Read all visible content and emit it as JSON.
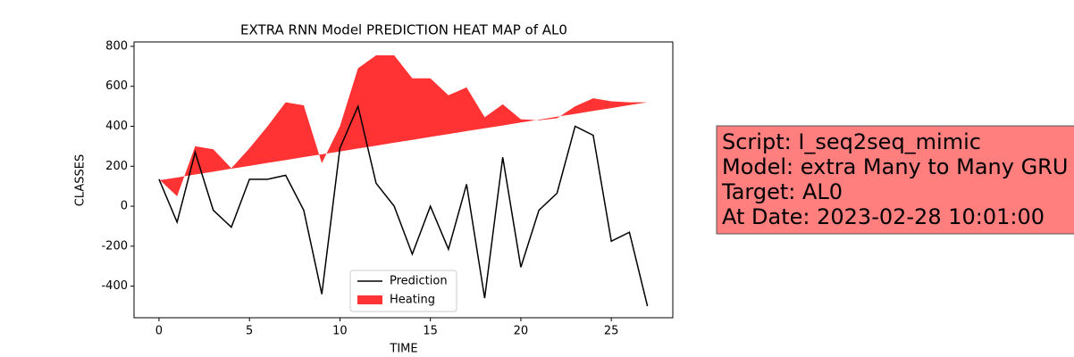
{
  "chart_data": {
    "type": "line",
    "title": "EXTRA RNN Model PREDICTION HEAT MAP of AL0",
    "xlabel": "TIME",
    "ylabel": "CLASSES",
    "x": [
      0,
      1,
      2,
      3,
      4,
      5,
      6,
      7,
      8,
      9,
      10,
      11,
      12,
      13,
      14,
      15,
      16,
      17,
      18,
      19,
      20,
      21,
      22,
      23,
      24,
      25,
      26,
      27
    ],
    "series": [
      {
        "name": "Prediction",
        "color": "#000000",
        "kind": "line",
        "values": [
          135,
          -80,
          270,
          -20,
          -105,
          135,
          135,
          155,
          -20,
          -440,
          290,
          500,
          115,
          0,
          -240,
          0,
          -215,
          110,
          -460,
          245,
          -305,
          -20,
          65,
          400,
          355,
          -175,
          -130,
          -500
        ]
      },
      {
        "name": "Heating",
        "color": "#ff0000",
        "kind": "area",
        "values": [
          135,
          50,
          300,
          285,
          190,
          290,
          400,
          520,
          505,
          215,
          400,
          690,
          755,
          755,
          640,
          640,
          555,
          595,
          445,
          510,
          435,
          430,
          440,
          500,
          540,
          525,
          520,
          520
        ],
        "baseline": [
          130,
          144,
          159,
          173,
          188,
          202,
          217,
          231,
          246,
          260,
          274,
          289,
          303,
          318,
          332,
          347,
          361,
          376,
          390,
          404,
          419,
          433,
          448,
          462,
          477,
          491,
          506,
          520
        ]
      }
    ],
    "xlim": [
      -1.38,
      28.4
    ],
    "ylim": [
      -558,
      822
    ],
    "xticks": [
      0,
      5,
      10,
      15,
      20,
      25
    ],
    "yticks": [
      -400,
      -200,
      0,
      200,
      400,
      600,
      800
    ],
    "legend": "lower center",
    "info_box": {
      "color": "#ff7f7f",
      "lines": [
        "Script: I_seq2seq_mimic",
        "Model: extra Many to Many GRU",
        "Target: AL0",
        "At Date: 2023-02-28 10:01:00"
      ]
    }
  }
}
